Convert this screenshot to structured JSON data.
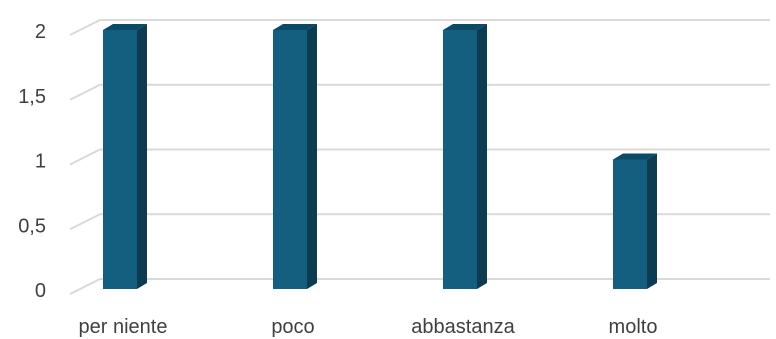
{
  "chart_data": {
    "type": "bar",
    "style": "3d-column",
    "categories": [
      "per niente",
      "poco",
      "abbastanza",
      "molto"
    ],
    "values": [
      2,
      2,
      2,
      1
    ],
    "ylim": [
      0,
      2
    ],
    "ytick_values": [
      0,
      0.5,
      1,
      1.5,
      2
    ],
    "ytick_labels": [
      "0",
      "0,5",
      "1",
      "1,5",
      "2"
    ],
    "grid": true,
    "legend": "none",
    "colors": {
      "bar_front": "#145f7f",
      "bar_top": "#0b4a66",
      "bar_side": "#0c3b52",
      "grid": "#d9d9d9",
      "text": "#404040"
    }
  }
}
